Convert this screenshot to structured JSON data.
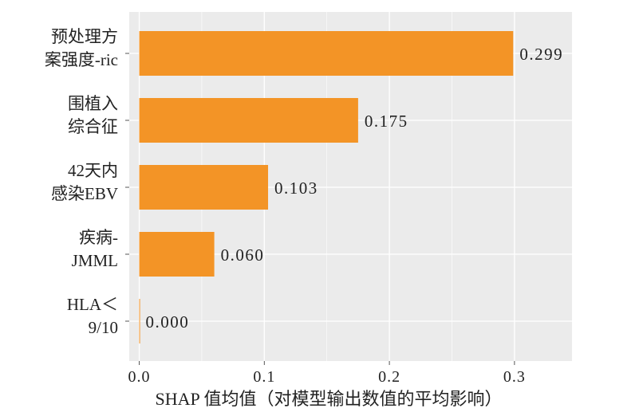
{
  "chart_data": {
    "type": "bar",
    "orientation": "horizontal",
    "categories": [
      [
        "预处理方",
        "案强度-ric"
      ],
      [
        "围植入",
        "综合征"
      ],
      [
        "42天内",
        "感染EBV"
      ],
      [
        "疾病-",
        "JMML"
      ],
      [
        "HLA＜",
        "9/10"
      ]
    ],
    "values": [
      0.299,
      0.175,
      0.103,
      0.06,
      0.0
    ],
    "value_labels": [
      "0.299",
      "0.175",
      "0.103",
      "0.060",
      "0.000"
    ],
    "xlabel": "SHAP 值均值（对模型输出数值的平均影响）",
    "ylabel": "",
    "xlim": [
      -0.008,
      0.346
    ],
    "xticks": [
      0.0,
      0.1,
      0.2,
      0.3
    ],
    "xtick_labels": [
      "0.0",
      "0.1",
      "0.2",
      "0.3"
    ],
    "grid": true,
    "colors": {
      "bar": "#F39426",
      "panel_background": "#EBEBEB",
      "grid": "#FFFFFF",
      "text": "#222222"
    }
  }
}
